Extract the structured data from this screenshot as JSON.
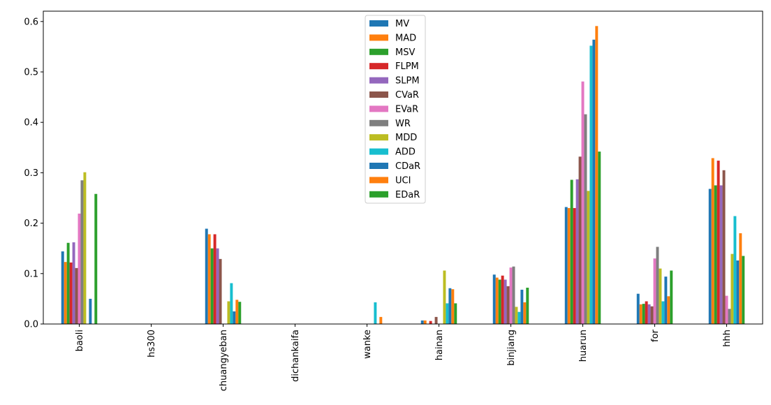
{
  "chart_data": {
    "type": "bar",
    "title": "",
    "xlabel": "",
    "ylabel": "",
    "ylim": [
      0,
      0.62
    ],
    "yticks": [
      "0.0",
      "0.1",
      "0.2",
      "0.3",
      "0.4",
      "0.5",
      "0.6"
    ],
    "ytick_values": [
      0,
      0.1,
      0.2,
      0.3,
      0.4,
      0.5,
      0.6
    ],
    "legend_position": "top-center",
    "grid": false,
    "categories": [
      "baoli",
      "hs300",
      "chuangyeban",
      "dichankaifa",
      "wanke",
      "hainan",
      "binjiang",
      "huarun",
      "for",
      "hhh"
    ],
    "series": [
      {
        "name": "MV",
        "color": "#1f77b4",
        "values": [
          0.144,
          0,
          0.189,
          0,
          0,
          0.007,
          0.098,
          0.232,
          0.06,
          0.268
        ]
      },
      {
        "name": "MAD",
        "color": "#ff7f0e",
        "values": [
          0.123,
          0,
          0.178,
          0,
          0,
          0.007,
          0.092,
          0.23,
          0.039,
          0.329
        ]
      },
      {
        "name": "MSV",
        "color": "#2ca02c",
        "values": [
          0.161,
          0,
          0.15,
          0,
          0,
          0,
          0.088,
          0.286,
          0.04,
          0.275
        ]
      },
      {
        "name": "FLPM",
        "color": "#d62728",
        "values": [
          0.122,
          0,
          0.178,
          0,
          0,
          0.006,
          0.096,
          0.23,
          0.045,
          0.324
        ]
      },
      {
        "name": "SLPM",
        "color": "#9467bd",
        "values": [
          0.162,
          0,
          0.15,
          0,
          0,
          0,
          0.088,
          0.287,
          0.039,
          0.275
        ]
      },
      {
        "name": "CVaR",
        "color": "#8c564b",
        "values": [
          0.111,
          0,
          0.129,
          0,
          0,
          0.014,
          0.075,
          0.332,
          0.035,
          0.305
        ]
      },
      {
        "name": "EVaR",
        "color": "#e377c2",
        "values": [
          0.219,
          0,
          0,
          0,
          0,
          0,
          0.112,
          0.481,
          0.13,
          0.056
        ]
      },
      {
        "name": "WR",
        "color": "#7f7f7f",
        "values": [
          0.285,
          0,
          0,
          0,
          0,
          0,
          0.114,
          0.416,
          0.153,
          0.03
        ]
      },
      {
        "name": "MDD",
        "color": "#bcbd22",
        "values": [
          0.301,
          0,
          0.045,
          0,
          0,
          0.106,
          0.034,
          0.264,
          0.11,
          0.139
        ]
      },
      {
        "name": "ADD",
        "color": "#17becf",
        "values": [
          0,
          0,
          0.081,
          0,
          0.043,
          0.041,
          0.024,
          0.552,
          0.045,
          0.214
        ]
      },
      {
        "name": "CDaR",
        "color": "#1f77b4",
        "values": [
          0.05,
          0,
          0.025,
          0,
          0,
          0.071,
          0.068,
          0.564,
          0.094,
          0.126
        ]
      },
      {
        "name": "UCI",
        "color": "#ff7f0e",
        "values": [
          0,
          0,
          0.048,
          0,
          0.014,
          0.069,
          0.043,
          0.591,
          0.055,
          0.18
        ]
      },
      {
        "name": "EDaR",
        "color": "#2ca02c",
        "values": [
          0.258,
          0,
          0.044,
          0,
          0,
          0.041,
          0.072,
          0.342,
          0.106,
          0.135
        ]
      }
    ]
  }
}
